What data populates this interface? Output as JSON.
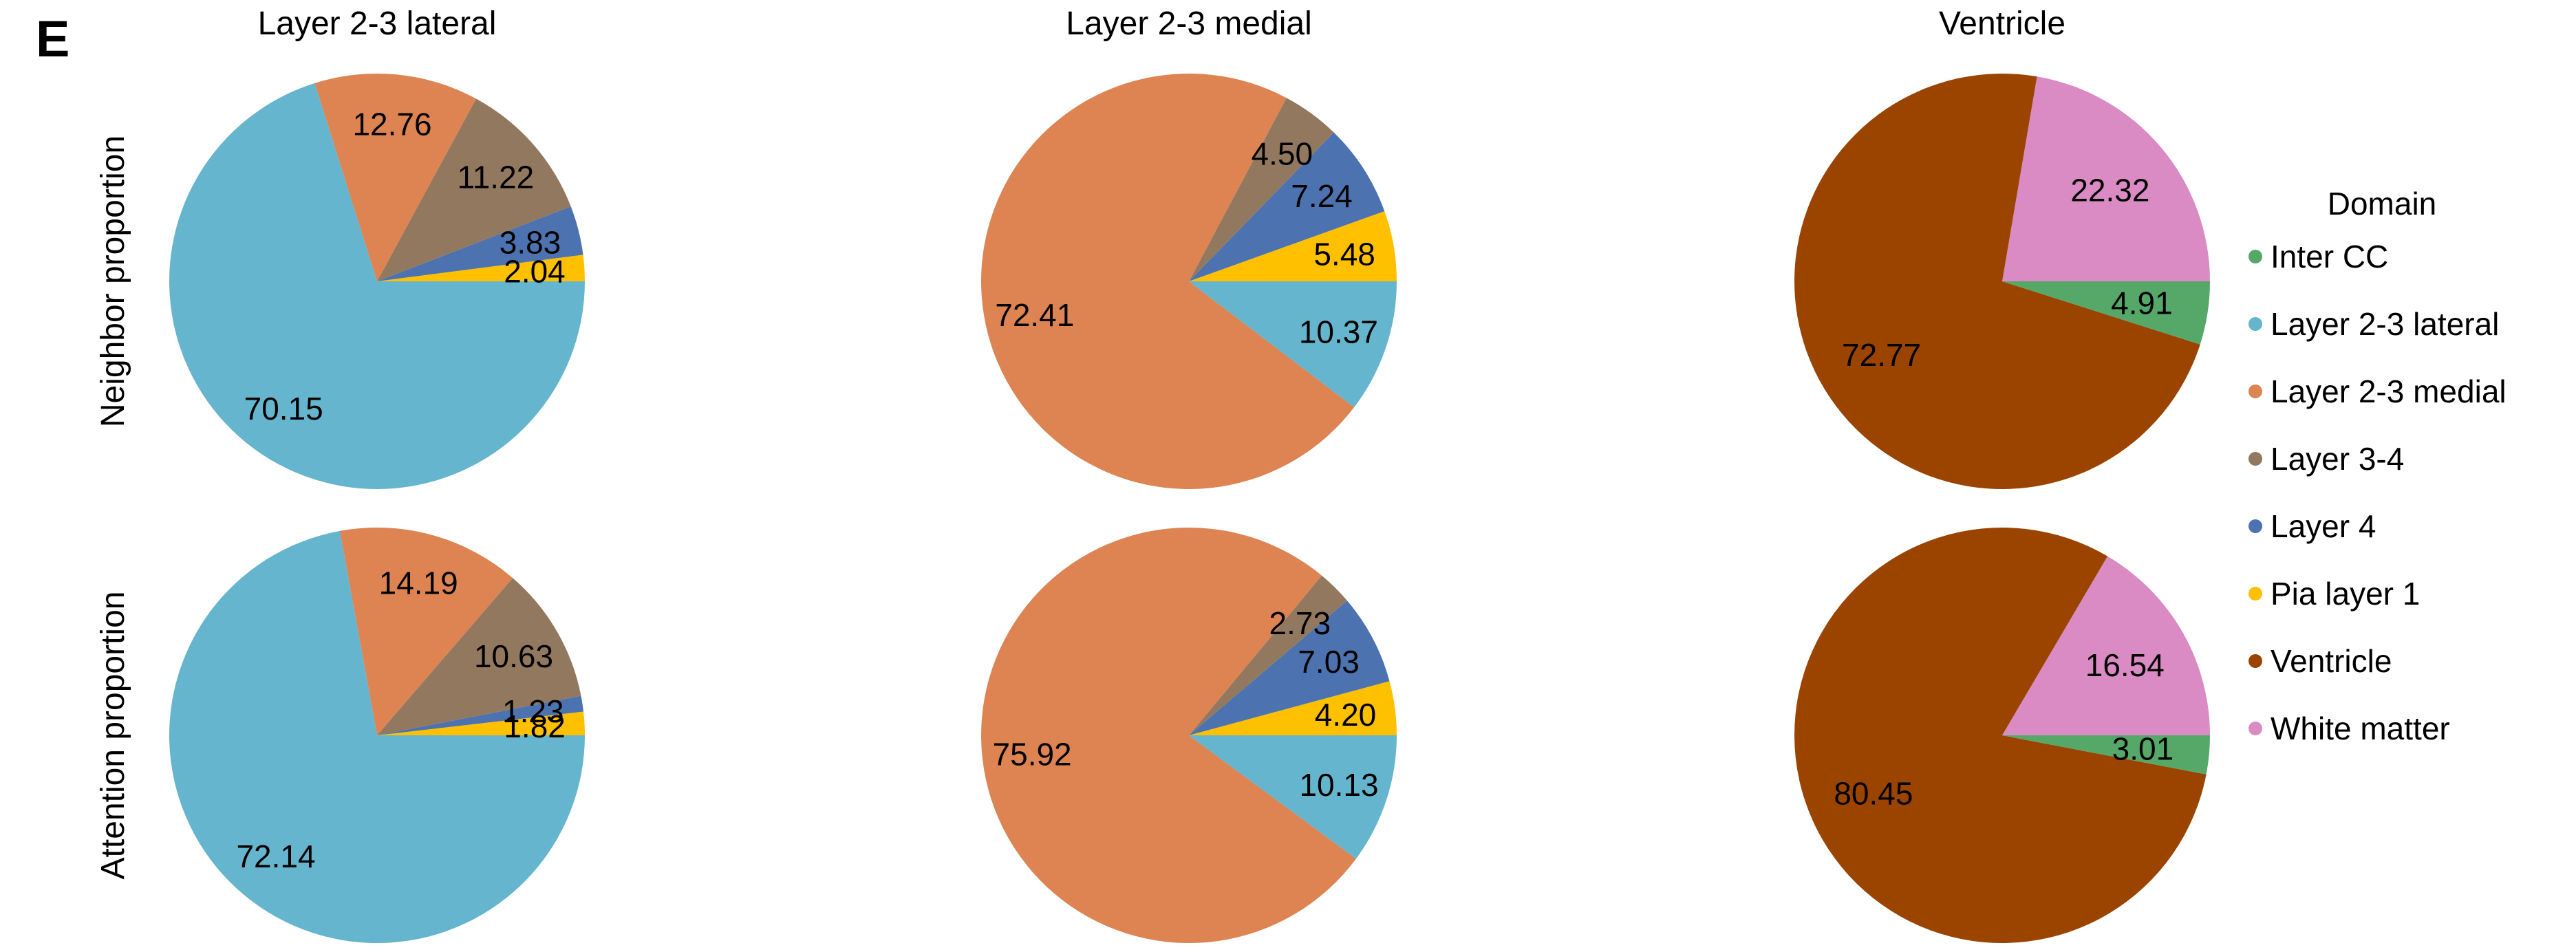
{
  "panel_letter": "E",
  "domain_colors": {
    "Inter CC": "#55A868",
    "Layer 2-3 lateral": "#64B5CD",
    "Layer 2-3 medial": "#DD8452",
    "Layer 3-4": "#937860",
    "Layer 4": "#4C72B0",
    "Pia layer 1": "#FFC000",
    "Ventricle": "#9B4400",
    "White matter": "#DA8BC3"
  },
  "chart_data": [
    {
      "type": "pie",
      "title": "Layer 2-3 lateral",
      "ylabel": "Neighbor proportion",
      "slices": [
        {
          "name": "Pia layer 1",
          "value": 2.04,
          "label": "2.04"
        },
        {
          "name": "Layer 4",
          "value": 3.83,
          "label": "3.83"
        },
        {
          "name": "Layer 3-4",
          "value": 11.22,
          "label": "11.22"
        },
        {
          "name": "Layer 2-3 medial",
          "value": 12.76,
          "label": "12.76"
        },
        {
          "name": "Layer 2-3 lateral",
          "value": 70.15,
          "label": "70.15"
        }
      ]
    },
    {
      "type": "pie",
      "title": "Layer 2-3 medial",
      "ylabel": "",
      "slices": [
        {
          "name": "Pia layer 1",
          "value": 5.48,
          "label": "5.48"
        },
        {
          "name": "Layer 4",
          "value": 7.24,
          "label": "7.24"
        },
        {
          "name": "Layer 3-4",
          "value": 4.5,
          "label": "4.50"
        },
        {
          "name": "Layer 2-3 medial",
          "value": 72.41,
          "label": "72.41"
        },
        {
          "name": "Layer 2-3 lateral",
          "value": 10.37,
          "label": "10.37"
        }
      ]
    },
    {
      "type": "pie",
      "title": "Ventricle",
      "ylabel": "",
      "slices": [
        {
          "name": "White matter",
          "value": 22.32,
          "label": "22.32"
        },
        {
          "name": "Ventricle",
          "value": 72.77,
          "label": "72.77"
        },
        {
          "name": "Inter CC",
          "value": 4.91,
          "label": "4.91"
        }
      ]
    },
    {
      "type": "pie",
      "title": "",
      "ylabel": "Attention proportion",
      "slices": [
        {
          "name": "Pia layer 1",
          "value": 1.82,
          "label": "1.82"
        },
        {
          "name": "Layer 4",
          "value": 1.23,
          "label": "1.23"
        },
        {
          "name": "Layer 3-4",
          "value": 10.63,
          "label": "10.63"
        },
        {
          "name": "Layer 2-3 medial",
          "value": 14.19,
          "label": "14.19"
        },
        {
          "name": "Layer 2-3 lateral",
          "value": 72.14,
          "label": "72.14"
        }
      ]
    },
    {
      "type": "pie",
      "title": "",
      "ylabel": "",
      "slices": [
        {
          "name": "Pia layer 1",
          "value": 4.2,
          "label": "4.20"
        },
        {
          "name": "Layer 4",
          "value": 7.03,
          "label": "7.03"
        },
        {
          "name": "Layer 3-4",
          "value": 2.73,
          "label": "2.73"
        },
        {
          "name": "Layer 2-3 medial",
          "value": 75.92,
          "label": "75.92"
        },
        {
          "name": "Layer 2-3 lateral",
          "value": 10.13,
          "label": "10.13"
        }
      ]
    },
    {
      "type": "pie",
      "title": "",
      "ylabel": "",
      "slices": [
        {
          "name": "White matter",
          "value": 16.54,
          "label": "16.54"
        },
        {
          "name": "Ventricle",
          "value": 80.45,
          "label": "80.45"
        },
        {
          "name": "Inter CC",
          "value": 3.01,
          "label": "3.01"
        }
      ]
    }
  ],
  "legend": {
    "title": "Domain",
    "items": [
      "Inter CC",
      "Layer 2-3 lateral",
      "Layer 2-3 medial",
      "Layer 3-4",
      "Layer 4",
      "Pia layer 1",
      "Ventricle",
      "White matter"
    ]
  }
}
